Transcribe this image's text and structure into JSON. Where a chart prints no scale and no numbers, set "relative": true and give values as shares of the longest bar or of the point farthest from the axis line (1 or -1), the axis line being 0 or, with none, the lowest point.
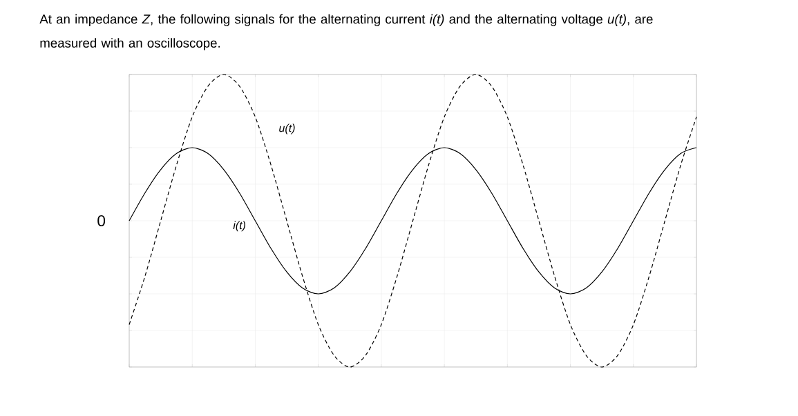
{
  "chart_data": {
    "type": "line",
    "relative": true,
    "title": "At an impedance *Z*, the following signals for the alternating current *i(t)* and the alternating voltage *u(t)*, are measured with an oscilloscope.",
    "categories": [
      null,
      null,
      null,
      null,
      null,
      null,
      null,
      null,
      null,
      null,
      null,
      null,
      null,
      null,
      null,
      null,
      null,
      null,
      null,
      null,
      null,
      null,
      null,
      null,
      null,
      null,
      null,
      null,
      null,
      null,
      null,
      null,
      null,
      null,
      null,
      null,
      null
    ],
    "series": [
      {
        "name": "*i(t)*",
        "color": "#000000",
        "line_style": "solid",
        "values": [
          0,
          0.19,
          0.35,
          0.46,
          0.5,
          0.46,
          0.35,
          0.19,
          0,
          -0.19,
          -0.35,
          -0.46,
          -0.5,
          -0.46,
          -0.35,
          -0.19,
          0,
          0.19,
          0.35,
          0.46,
          0.5,
          0.46,
          0.35,
          0.19,
          0,
          -0.19,
          -0.35,
          -0.46,
          -0.5,
          -0.46,
          -0.35,
          -0.19,
          0,
          0.19,
          0.35,
          0.46,
          0.5
        ]
      },
      {
        "name": "*u(t)*",
        "color": "#000000",
        "line_style": "dashed",
        "values": [
          -0.71,
          -0.38,
          0,
          0.38,
          0.71,
          0.92,
          1,
          0.92,
          0.71,
          0.38,
          0,
          -0.38,
          -0.71,
          -0.92,
          -1,
          -0.92,
          -0.71,
          -0.38,
          0,
          0.38,
          0.71,
          0.92,
          1,
          0.92,
          0.71,
          0.38,
          0,
          -0.38,
          -0.71,
          -0.92,
          -1,
          -0.92,
          -0.71,
          -0.38,
          0,
          0.38,
          0.71
        ]
      }
    ],
    "annotations": [
      "0"
    ],
    "grid": true,
    "marker": "none"
  }
}
